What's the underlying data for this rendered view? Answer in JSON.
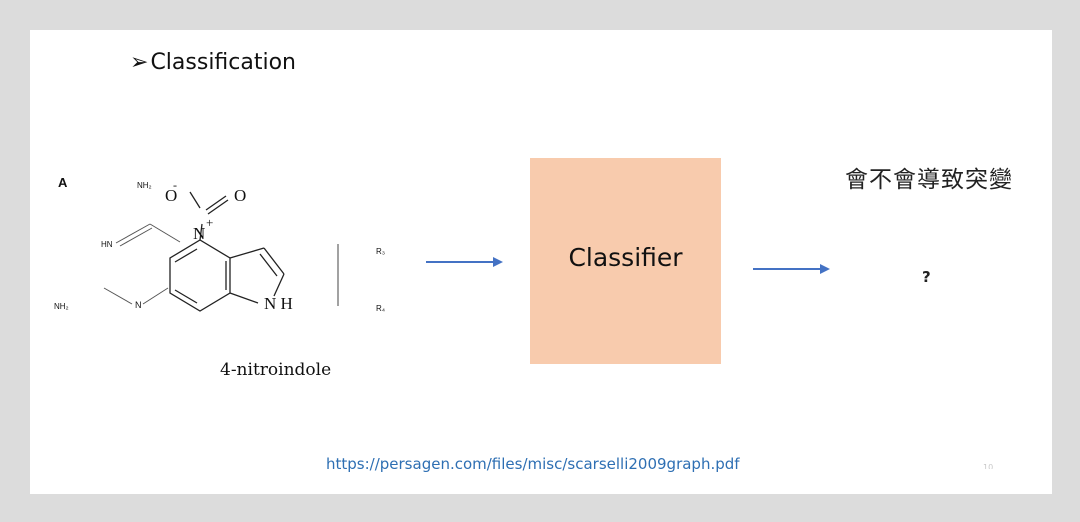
{
  "slide": {
    "title_bullet": "➢",
    "title": "Classification",
    "figure_label": "A",
    "molecule": {
      "name": "4-nitroindole",
      "atom_o_minus": "O",
      "minus_sign": "-",
      "atom_o": "O",
      "atom_n": "N",
      "plus_sign": "+",
      "atom_nh": "N H",
      "nh2_top": "NH₂",
      "nh2_bottom": "NH₂",
      "hn": "HN",
      "n_ring": "N",
      "r3": "R₃",
      "r4": "R₄"
    },
    "classifier_label": "Classifier",
    "question": "會不會導致突變",
    "output_mark": "?",
    "source_url": "https://persagen.com/files/misc/scarselli2009graph.pdf",
    "slide_number": "10"
  },
  "colors": {
    "background": "#dcdcdc",
    "slide": "#ffffff",
    "classifier_fill": "#f8cbad",
    "arrow": "#4472c4",
    "link": "#2e6fb3"
  }
}
